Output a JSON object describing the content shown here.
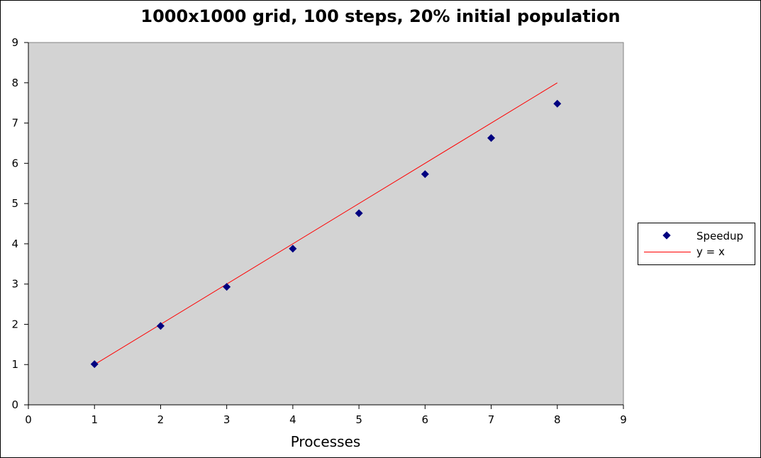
{
  "chart_data": {
    "type": "scatter",
    "title": "1000x1000 grid, 100 steps, 20% initial population",
    "xlabel": "Processes",
    "ylabel": "",
    "xlim": [
      0,
      9
    ],
    "ylim": [
      0,
      9
    ],
    "xticks": [
      0,
      1,
      2,
      3,
      4,
      5,
      6,
      7,
      8,
      9
    ],
    "yticks": [
      0,
      1,
      2,
      3,
      4,
      5,
      6,
      7,
      8,
      9
    ],
    "grid": false,
    "legend": "right",
    "plot_background": "#d3d3d3",
    "series": [
      {
        "name": "Speedup",
        "kind": "scatter",
        "marker": "diamond",
        "color": "#000080",
        "x": [
          1,
          2,
          3,
          4,
          5,
          6,
          7,
          8
        ],
        "y": [
          1.01,
          1.96,
          2.93,
          3.88,
          4.76,
          5.73,
          6.63,
          7.48
        ]
      },
      {
        "name": "y = x",
        "kind": "line",
        "color": "#ff0000",
        "x": [
          1,
          8
        ],
        "y": [
          1,
          8
        ]
      }
    ]
  }
}
